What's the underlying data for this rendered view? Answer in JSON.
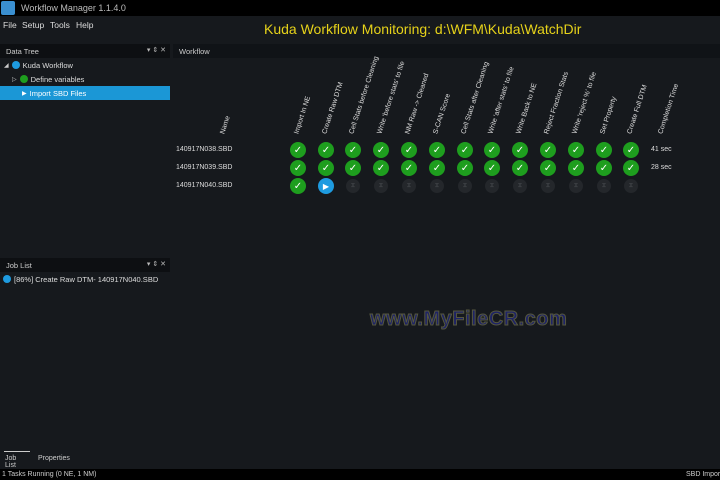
{
  "window": {
    "title": "Workflow Manager 1.1.4.0"
  },
  "menu": [
    "File",
    "Setup",
    "Tools",
    "Help"
  ],
  "banner": "Kuda Workflow  Monitoring: d:\\WFM\\Kuda\\WatchDir",
  "data_tree": {
    "title": "Data Tree",
    "items": [
      {
        "label": "Kuda Workflow",
        "icon": "play-circle-icon"
      },
      {
        "label": "Define variables",
        "icon": "check-circle-icon"
      },
      {
        "label": "Import SBD Files",
        "icon": "play-icon",
        "selected": true
      }
    ]
  },
  "workflow": {
    "title": "Workflow",
    "name_header": "Name",
    "columns": [
      "Import In NE",
      "Create Raw DTM",
      "Cell Stats before Cleaning",
      "Write 'before stats' to file",
      "NM Raw -> Cleaned",
      "S-CAN Score",
      "Cell Stats after Cleaning",
      "Write 'after stats' to file",
      "Write Back to NE",
      "Reject Fraction Stats",
      "Write 'reject %' to file",
      "Set Property",
      "Create Full DTM"
    ],
    "completion_header": "Completion Time",
    "rows": [
      {
        "name": "140917N038.SBD",
        "states": [
          "done",
          "done",
          "done",
          "done",
          "done",
          "done",
          "done",
          "done",
          "done",
          "done",
          "done",
          "done",
          "done"
        ],
        "time": "41 sec"
      },
      {
        "name": "140917N039.SBD",
        "states": [
          "done",
          "done",
          "done",
          "done",
          "done",
          "done",
          "done",
          "done",
          "done",
          "done",
          "done",
          "done",
          "done"
        ],
        "time": "28 sec"
      },
      {
        "name": "140917N040.SBD",
        "states": [
          "done",
          "running",
          "pending",
          "pending",
          "pending",
          "pending",
          "pending",
          "pending",
          "pending",
          "pending",
          "pending",
          "pending",
          "pending"
        ],
        "time": ""
      }
    ]
  },
  "job_list": {
    "title": "Job List",
    "items": [
      {
        "label": "[86%] Create Raw DTM- 140917N040.SBD",
        "progress_percent": 86
      }
    ]
  },
  "bottom_tabs": [
    "Job List",
    "Properties"
  ],
  "status": {
    "left": "1 Tasks Running (0 NE, 1 NM)",
    "right": "SBD Import"
  },
  "watermark": "www.MyFileCR.com",
  "colors": {
    "done": "#1e9e1e",
    "running": "#1e9be0",
    "selected": "#1b97d6",
    "banner": "#e6d21a"
  }
}
